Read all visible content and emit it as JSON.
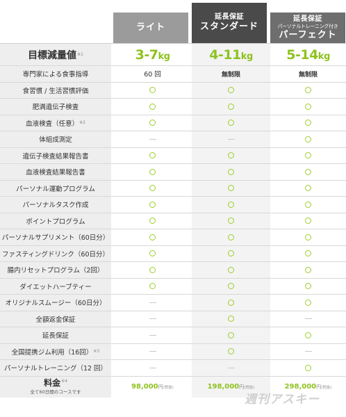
{
  "plans": {
    "light": {
      "name": "ライト"
    },
    "standard": {
      "sup": "延長保証",
      "name": "スタンダード"
    },
    "perfect": {
      "sup": "延長保証",
      "sub": "パーソナルトレーニング付き",
      "name": "パーフェクト"
    }
  },
  "target": {
    "label": "目標減量値",
    "note": "※1",
    "light": "3-7",
    "standard": "4-11",
    "perfect": "5-14",
    "unit": "kg"
  },
  "rows": [
    {
      "label": "専門家による食事指導",
      "note": "",
      "cells": [
        "text:60 回",
        "bold:無制限",
        "bold:無制限"
      ]
    },
    {
      "label": "食習慣 / 生活習慣評価",
      "note": "",
      "cells": [
        "circle",
        "circle",
        "circle"
      ]
    },
    {
      "label": "肥満遺伝子検査",
      "note": "",
      "cells": [
        "circle",
        "circle",
        "circle"
      ]
    },
    {
      "label": "血液検査（任意）",
      "note": "※2",
      "cells": [
        "circle",
        "circle",
        "circle"
      ]
    },
    {
      "label": "体組成測定",
      "note": "",
      "cells": [
        "dash",
        "dash",
        "circle"
      ]
    },
    {
      "label": "遺伝子検査結果報告書",
      "note": "",
      "cells": [
        "circle",
        "circle",
        "circle"
      ]
    },
    {
      "label": "血液検査結果報告書",
      "note": "",
      "cells": [
        "circle",
        "circle",
        "circle"
      ]
    },
    {
      "label": "パーソナル運動プログラム",
      "note": "",
      "cells": [
        "circle",
        "circle",
        "circle"
      ]
    },
    {
      "label": "パーソナルタスク作成",
      "note": "",
      "cells": [
        "circle",
        "circle",
        "circle"
      ]
    },
    {
      "label": "ポイントプログラム",
      "note": "",
      "cells": [
        "circle",
        "circle",
        "circle"
      ]
    },
    {
      "label": "パーソナルサプリメント（60日分）",
      "note": "",
      "cells": [
        "circle",
        "circle",
        "circle"
      ]
    },
    {
      "label": "ファスティングドリンク（60日分）",
      "note": "",
      "cells": [
        "circle",
        "circle",
        "circle"
      ]
    },
    {
      "label": "腸内リセットプログラム（2回）",
      "note": "",
      "cells": [
        "circle",
        "circle",
        "circle"
      ]
    },
    {
      "label": "ダイエットハーブティー",
      "note": "",
      "cells": [
        "circle",
        "circle",
        "circle"
      ]
    },
    {
      "label": "オリジナルスムージー（60日分）",
      "note": "",
      "cells": [
        "dash",
        "circle",
        "circle"
      ]
    },
    {
      "label": "全額返金保証",
      "note": "",
      "cells": [
        "dash",
        "circle",
        "dash"
      ]
    },
    {
      "label": "延長保証",
      "note": "",
      "cells": [
        "dash",
        "circle",
        "circle"
      ]
    },
    {
      "label": "全国提携ジム利用（16回）",
      "note": "※3",
      "cells": [
        "dash",
        "circle",
        "dash"
      ]
    },
    {
      "label": "パーソナルトレーニング（12 回）",
      "note": "",
      "cells": [
        "dash",
        "dash",
        "circle"
      ]
    }
  ],
  "price": {
    "label": "料金",
    "note": "※4",
    "subnote": "全て60日間のコースです",
    "light": "98,000",
    "standard": "198,000",
    "perfect": "298,000",
    "yen": "円",
    "tax": "(税抜)"
  },
  "watermark": "週刊アスキー",
  "colors": {
    "accent_green": "#8ec21f",
    "light_head": "#9b9b9b",
    "standard_head": "#4a4a4a",
    "perfect_head": "#6e6e6e"
  }
}
